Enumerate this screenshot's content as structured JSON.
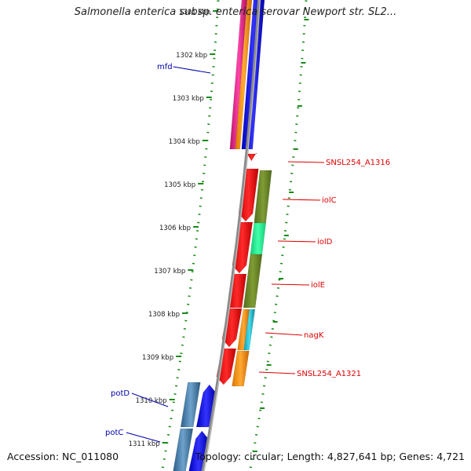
{
  "title": "Salmonella enterica subsp. enterica serovar Newport str. SL2...",
  "footer": {
    "accession": "Accession: NC_011080",
    "topology": "Topology: circular; Length: 4,827,641 bp; Genes: 4,721"
  },
  "colors": {
    "backbone": "#888888",
    "ticks": "#1a8a1a",
    "gene_label_red": "#dd0000",
    "gene_label_blue": "#0000aa",
    "red": "#ff0000",
    "olive": "#6b8e23",
    "mint": "#22ee99",
    "orange": "#ff9900",
    "cyan": "#22ccdd",
    "magenta": "#ee2288",
    "blue": "#0000ff",
    "steelblue": "#4682b4"
  },
  "kbp_labels": [
    "1301 kbp",
    "1302 kbp",
    "1303 kbp",
    "1304 kbp",
    "1305 kbp",
    "1306 kbp",
    "1307 kbp",
    "1308 kbp",
    "1309 kbp",
    "1310 kbp",
    "1311 kbp"
  ],
  "gene_labels": [
    {
      "id": "mfd",
      "text": "mfd",
      "color": "blue"
    },
    {
      "id": "snsl254-a1316",
      "text": "SNSL254_A1316",
      "color": "red"
    },
    {
      "id": "iolc",
      "text": "iolC",
      "color": "red"
    },
    {
      "id": "iold",
      "text": "iolD",
      "color": "red"
    },
    {
      "id": "iole",
      "text": "iolE",
      "color": "red"
    },
    {
      "id": "nagk",
      "text": "nagK",
      "color": "red"
    },
    {
      "id": "snsl254-a1321",
      "text": "SNSL254_A1321",
      "color": "red"
    },
    {
      "id": "potd",
      "text": "potD",
      "color": "blue"
    },
    {
      "id": "potc",
      "text": "potC",
      "color": "blue"
    }
  ]
}
